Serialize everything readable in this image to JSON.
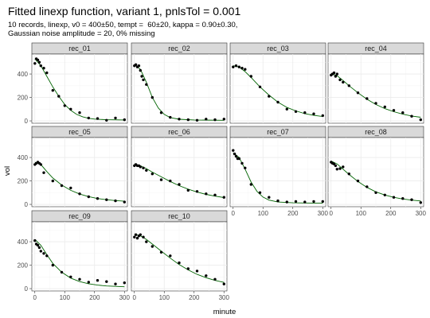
{
  "title": "Fitted linexp function, variant 1, pnlsTol = 0.001",
  "subtitle_lines": [
    "10 records, linexp, v0 = 400±50, tempt =  60±20, kappa = 0.90±0.30,",
    "Gaussian noise amplitude = 20, 0% missing"
  ],
  "chart_data": {
    "type": "scatter",
    "xlabel": "minute",
    "ylabel": "vol",
    "xlim": [
      -10,
      310
    ],
    "ylim": [
      -20,
      570
    ],
    "x_ticks": [
      0,
      100,
      200,
      300
    ],
    "y_ticks": [
      0,
      200,
      400
    ],
    "grid": true,
    "fit_line_color": "#006400",
    "point_color": "#000000",
    "strip_color": "#d9d9d9",
    "panels": [
      {
        "name": "rec_01",
        "points": [
          [
            0,
            490
          ],
          [
            5,
            530
          ],
          [
            10,
            520
          ],
          [
            15,
            500
          ],
          [
            20,
            470
          ],
          [
            30,
            450
          ],
          [
            40,
            410
          ],
          [
            60,
            260
          ],
          [
            80,
            210
          ],
          [
            100,
            130
          ],
          [
            120,
            100
          ],
          [
            150,
            70
          ],
          [
            180,
            25
          ],
          [
            210,
            20
          ],
          [
            240,
            5
          ],
          [
            270,
            25
          ],
          [
            300,
            10
          ]
        ],
        "fit": [
          [
            0,
            530
          ],
          [
            20,
            470
          ],
          [
            40,
            380
          ],
          [
            60,
            290
          ],
          [
            80,
            210
          ],
          [
            100,
            140
          ],
          [
            120,
            90
          ],
          [
            140,
            55
          ],
          [
            160,
            35
          ],
          [
            180,
            22
          ],
          [
            200,
            15
          ],
          [
            240,
            10
          ],
          [
            300,
            8
          ]
        ]
      },
      {
        "name": "rec_02",
        "points": [
          [
            0,
            470
          ],
          [
            5,
            480
          ],
          [
            10,
            460
          ],
          [
            15,
            470
          ],
          [
            20,
            430
          ],
          [
            25,
            380
          ],
          [
            30,
            350
          ],
          [
            40,
            310
          ],
          [
            60,
            200
          ],
          [
            90,
            70
          ],
          [
            120,
            30
          ],
          [
            150,
            15
          ],
          [
            180,
            10
          ],
          [
            210,
            5
          ],
          [
            240,
            15
          ],
          [
            270,
            10
          ],
          [
            300,
            15
          ]
        ],
        "fit": [
          [
            0,
            480
          ],
          [
            20,
            440
          ],
          [
            40,
            330
          ],
          [
            60,
            200
          ],
          [
            80,
            110
          ],
          [
            100,
            55
          ],
          [
            120,
            28
          ],
          [
            150,
            14
          ],
          [
            200,
            8
          ],
          [
            300,
            5
          ]
        ]
      },
      {
        "name": "rec_03",
        "points": [
          [
            0,
            460
          ],
          [
            10,
            470
          ],
          [
            20,
            460
          ],
          [
            30,
            450
          ],
          [
            40,
            440
          ],
          [
            60,
            380
          ],
          [
            90,
            290
          ],
          [
            120,
            210
          ],
          [
            150,
            160
          ],
          [
            180,
            100
          ],
          [
            210,
            80
          ],
          [
            240,
            70
          ],
          [
            270,
            60
          ],
          [
            300,
            45
          ]
        ],
        "fit": [
          [
            0,
            470
          ],
          [
            20,
            460
          ],
          [
            40,
            420
          ],
          [
            60,
            370
          ],
          [
            90,
            290
          ],
          [
            120,
            220
          ],
          [
            150,
            160
          ],
          [
            180,
            115
          ],
          [
            210,
            85
          ],
          [
            240,
            62
          ],
          [
            270,
            47
          ],
          [
            300,
            37
          ]
        ]
      },
      {
        "name": "rec_04",
        "points": [
          [
            0,
            390
          ],
          [
            5,
            400
          ],
          [
            10,
            410
          ],
          [
            15,
            380
          ],
          [
            20,
            400
          ],
          [
            30,
            350
          ],
          [
            40,
            330
          ],
          [
            60,
            300
          ],
          [
            90,
            240
          ],
          [
            120,
            190
          ],
          [
            150,
            150
          ],
          [
            180,
            120
          ],
          [
            210,
            90
          ],
          [
            240,
            70
          ],
          [
            270,
            40
          ],
          [
            300,
            10
          ]
        ],
        "fit": [
          [
            0,
            405
          ],
          [
            20,
            385
          ],
          [
            40,
            345
          ],
          [
            60,
            300
          ],
          [
            90,
            240
          ],
          [
            120,
            185
          ],
          [
            150,
            140
          ],
          [
            180,
            105
          ],
          [
            210,
            78
          ],
          [
            240,
            57
          ],
          [
            270,
            42
          ],
          [
            300,
            31
          ]
        ]
      },
      {
        "name": "rec_05",
        "points": [
          [
            0,
            340
          ],
          [
            5,
            350
          ],
          [
            10,
            360
          ],
          [
            15,
            350
          ],
          [
            20,
            340
          ],
          [
            30,
            270
          ],
          [
            60,
            200
          ],
          [
            90,
            160
          ],
          [
            120,
            140
          ],
          [
            150,
            90
          ],
          [
            180,
            65
          ],
          [
            210,
            50
          ],
          [
            240,
            40
          ],
          [
            270,
            30
          ],
          [
            300,
            20
          ]
        ],
        "fit": [
          [
            0,
            360
          ],
          [
            20,
            340
          ],
          [
            40,
            280
          ],
          [
            60,
            225
          ],
          [
            90,
            165
          ],
          [
            120,
            120
          ],
          [
            150,
            88
          ],
          [
            180,
            66
          ],
          [
            210,
            50
          ],
          [
            240,
            40
          ],
          [
            270,
            32
          ],
          [
            300,
            27
          ]
        ]
      },
      {
        "name": "rec_06",
        "points": [
          [
            0,
            330
          ],
          [
            5,
            340
          ],
          [
            10,
            330
          ],
          [
            15,
            330
          ],
          [
            20,
            320
          ],
          [
            30,
            310
          ],
          [
            40,
            290
          ],
          [
            60,
            260
          ],
          [
            90,
            210
          ],
          [
            120,
            200
          ],
          [
            150,
            170
          ],
          [
            180,
            120
          ],
          [
            210,
            110
          ],
          [
            240,
            90
          ],
          [
            270,
            80
          ],
          [
            300,
            60
          ]
        ],
        "fit": [
          [
            0,
            345
          ],
          [
            20,
            330
          ],
          [
            40,
            305
          ],
          [
            60,
            275
          ],
          [
            90,
            235
          ],
          [
            120,
            195
          ],
          [
            150,
            160
          ],
          [
            180,
            130
          ],
          [
            210,
            105
          ],
          [
            240,
            85
          ],
          [
            270,
            70
          ],
          [
            300,
            58
          ]
        ]
      },
      {
        "name": "rec_07",
        "points": [
          [
            0,
            460
          ],
          [
            5,
            430
          ],
          [
            10,
            410
          ],
          [
            15,
            390
          ],
          [
            20,
            390
          ],
          [
            30,
            350
          ],
          [
            40,
            310
          ],
          [
            60,
            170
          ],
          [
            90,
            100
          ],
          [
            120,
            60
          ],
          [
            150,
            30
          ],
          [
            180,
            20
          ],
          [
            210,
            25
          ],
          [
            240,
            20
          ],
          [
            270,
            25
          ],
          [
            300,
            25
          ]
        ],
        "fit": [
          [
            0,
            440
          ],
          [
            20,
            400
          ],
          [
            40,
            300
          ],
          [
            60,
            190
          ],
          [
            80,
            110
          ],
          [
            100,
            62
          ],
          [
            120,
            36
          ],
          [
            150,
            20
          ],
          [
            200,
            13
          ],
          [
            300,
            10
          ]
        ]
      },
      {
        "name": "rec_08",
        "points": [
          [
            0,
            360
          ],
          [
            5,
            350
          ],
          [
            10,
            345
          ],
          [
            15,
            330
          ],
          [
            20,
            300
          ],
          [
            30,
            305
          ],
          [
            40,
            320
          ],
          [
            60,
            260
          ],
          [
            90,
            200
          ],
          [
            120,
            150
          ],
          [
            150,
            100
          ],
          [
            180,
            80
          ],
          [
            210,
            60
          ],
          [
            240,
            50
          ],
          [
            270,
            40
          ],
          [
            300,
            15
          ]
        ],
        "fit": [
          [
            0,
            370
          ],
          [
            20,
            345
          ],
          [
            40,
            300
          ],
          [
            60,
            255
          ],
          [
            90,
            195
          ],
          [
            120,
            145
          ],
          [
            150,
            107
          ],
          [
            180,
            80
          ],
          [
            210,
            60
          ],
          [
            240,
            46
          ],
          [
            270,
            36
          ],
          [
            300,
            29
          ]
        ]
      },
      {
        "name": "rec_09",
        "points": [
          [
            0,
            410
          ],
          [
            5,
            380
          ],
          [
            10,
            370
          ],
          [
            15,
            350
          ],
          [
            20,
            320
          ],
          [
            30,
            300
          ],
          [
            40,
            280
          ],
          [
            60,
            200
          ],
          [
            90,
            140
          ],
          [
            120,
            100
          ],
          [
            150,
            80
          ],
          [
            180,
            55
          ],
          [
            210,
            70
          ],
          [
            240,
            60
          ],
          [
            270,
            40
          ],
          [
            300,
            50
          ]
        ],
        "fit": [
          [
            0,
            420
          ],
          [
            20,
            370
          ],
          [
            40,
            290
          ],
          [
            60,
            215
          ],
          [
            90,
            140
          ],
          [
            120,
            90
          ],
          [
            150,
            60
          ],
          [
            180,
            42
          ],
          [
            210,
            30
          ],
          [
            240,
            23
          ],
          [
            270,
            19
          ],
          [
            300,
            16
          ]
        ]
      },
      {
        "name": "rec_10",
        "points": [
          [
            0,
            440
          ],
          [
            5,
            460
          ],
          [
            10,
            430
          ],
          [
            15,
            450
          ],
          [
            20,
            460
          ],
          [
            30,
            440
          ],
          [
            40,
            400
          ],
          [
            60,
            360
          ],
          [
            90,
            310
          ],
          [
            120,
            280
          ],
          [
            150,
            220
          ],
          [
            180,
            170
          ],
          [
            210,
            150
          ],
          [
            240,
            110
          ],
          [
            270,
            80
          ],
          [
            300,
            40
          ]
        ],
        "fit": [
          [
            0,
            465
          ],
          [
            20,
            450
          ],
          [
            40,
            420
          ],
          [
            60,
            380
          ],
          [
            90,
            320
          ],
          [
            120,
            260
          ],
          [
            150,
            205
          ],
          [
            180,
            160
          ],
          [
            210,
            122
          ],
          [
            240,
            93
          ],
          [
            270,
            70
          ],
          [
            300,
            53
          ]
        ]
      }
    ]
  }
}
